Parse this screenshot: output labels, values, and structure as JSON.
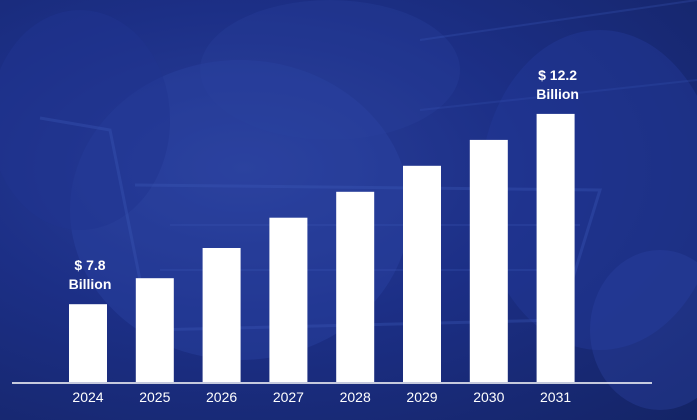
{
  "colors": {
    "background": "#1c2f86",
    "bar": "#ffffff",
    "text": "#ffffff"
  },
  "chart_data": {
    "type": "bar",
    "title": "",
    "xlabel": "",
    "ylabel": "",
    "categories": [
      "2024",
      "2025",
      "2026",
      "2027",
      "2028",
      "2029",
      "2030",
      "2031"
    ],
    "values": [
      7.8,
      8.4,
      9.1,
      9.8,
      10.4,
      11.0,
      11.6,
      12.2
    ],
    "ylim": [
      6.0,
      12.8
    ],
    "grid": false,
    "legend": "none",
    "annotations": [
      {
        "category": "2024",
        "line1": "$ 7.8",
        "line2": "Billion"
      },
      {
        "category": "2031",
        "line1": "$ 12.2",
        "line2": "Billion"
      }
    ]
  }
}
